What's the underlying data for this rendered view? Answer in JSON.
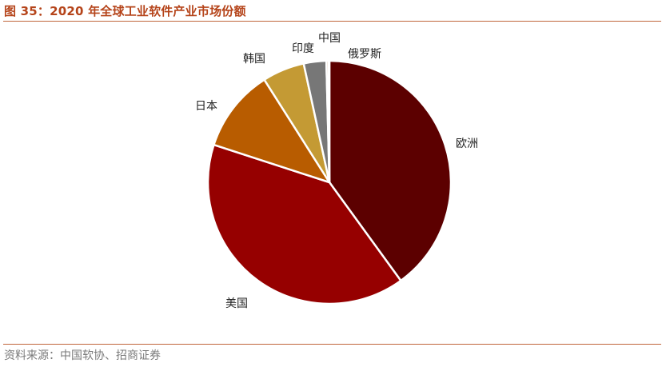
{
  "figure": {
    "title": "图 35：2020 年全球工业软件产业市场份额",
    "source": "资料来源：中国软协、招商证券"
  },
  "chart_data": {
    "type": "pie",
    "title": "",
    "start_angle_deg": 0,
    "direction": "clockwise",
    "slices": [
      {
        "label": "欧洲",
        "value": 40.0,
        "color": "#5c0000"
      },
      {
        "label": "美国",
        "value": 40.0,
        "color": "#960000"
      },
      {
        "label": "日本",
        "value": 11.0,
        "color": "#b85c00"
      },
      {
        "label": "韩国",
        "value": 5.6,
        "color": "#c49a34"
      },
      {
        "label": "印度",
        "value": 3.0,
        "color": "#777777"
      },
      {
        "label": "中国",
        "value": 0.3,
        "color": "#b98d63"
      },
      {
        "label": "俄罗斯",
        "value": 0.1,
        "color": "#b09070"
      }
    ]
  }
}
